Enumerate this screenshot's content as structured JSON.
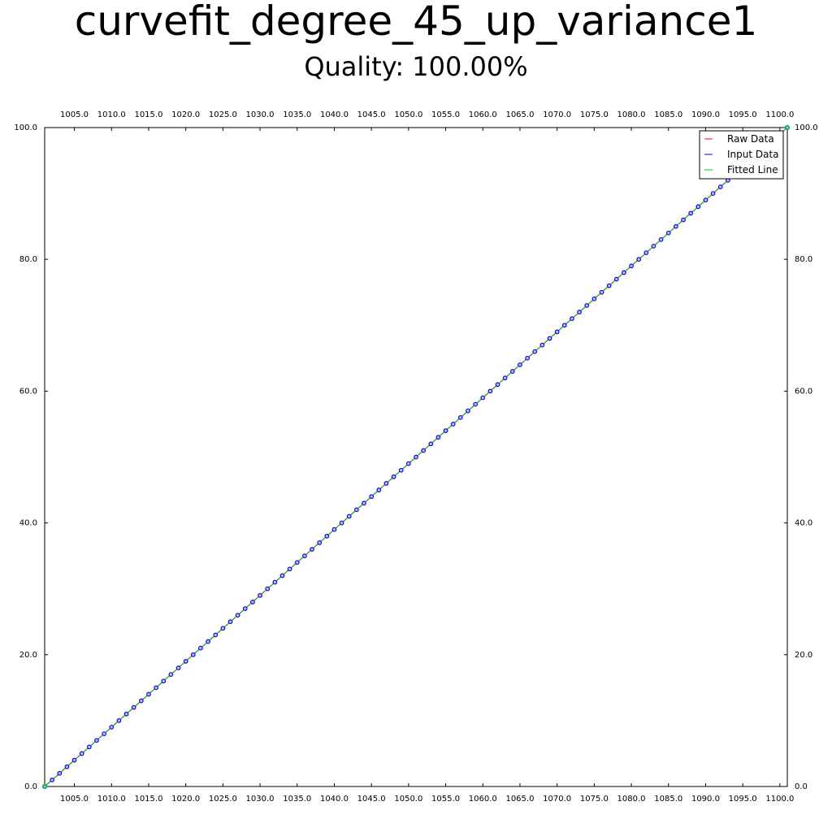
{
  "title": "curvefit_degree_45_up_variance1",
  "subtitle": "Quality: 100.00%",
  "colors": {
    "raw": "#ff0000",
    "input": "#0000ff",
    "fitted": "#00cc00"
  },
  "chart_data": {
    "type": "line",
    "title": "curvefit_degree_45_up_variance1",
    "subtitle": "Quality: 100.00%",
    "xlabel": "",
    "ylabel": "",
    "xlim": [
      1001,
      1101
    ],
    "ylim": [
      0,
      100
    ],
    "xticks": [
      1005,
      1010,
      1015,
      1020,
      1025,
      1030,
      1035,
      1040,
      1045,
      1050,
      1055,
      1060,
      1065,
      1070,
      1075,
      1080,
      1085,
      1090,
      1095,
      1100
    ],
    "xtick_labels": [
      "1005.0",
      "1010.0",
      "1015.0",
      "1020.0",
      "1025.0",
      "1030.0",
      "1035.0",
      "1040.0",
      "1045.0",
      "1050.0",
      "1055.0",
      "1060.0",
      "1065.0",
      "1070.0",
      "1075.0",
      "1080.0",
      "1085.0",
      "1090.0",
      "1095.0",
      "1100.0"
    ],
    "yticks": [
      0,
      20,
      40,
      60,
      80,
      100
    ],
    "ytick_labels": [
      "0.0",
      "20.0",
      "40.0",
      "60.0",
      "80.0",
      "100.0"
    ],
    "grid": false,
    "legend_position": "top-right",
    "legend": [
      "Raw Data",
      "Input Data",
      "Fitted Line"
    ],
    "series": [
      {
        "name": "Raw Data",
        "color": "#ff0000",
        "x_start": 1001,
        "x_end": 1101,
        "y_start": 0,
        "y_end": 100,
        "points": 101
      },
      {
        "name": "Input Data",
        "color": "#0000ff",
        "x_start": 1001,
        "x_end": 1101,
        "y_start": 0,
        "y_end": 100,
        "points": 101
      },
      {
        "name": "Fitted Line",
        "color": "#00cc00",
        "x": [
          1001,
          1101
        ],
        "y": [
          0,
          100
        ]
      }
    ]
  }
}
